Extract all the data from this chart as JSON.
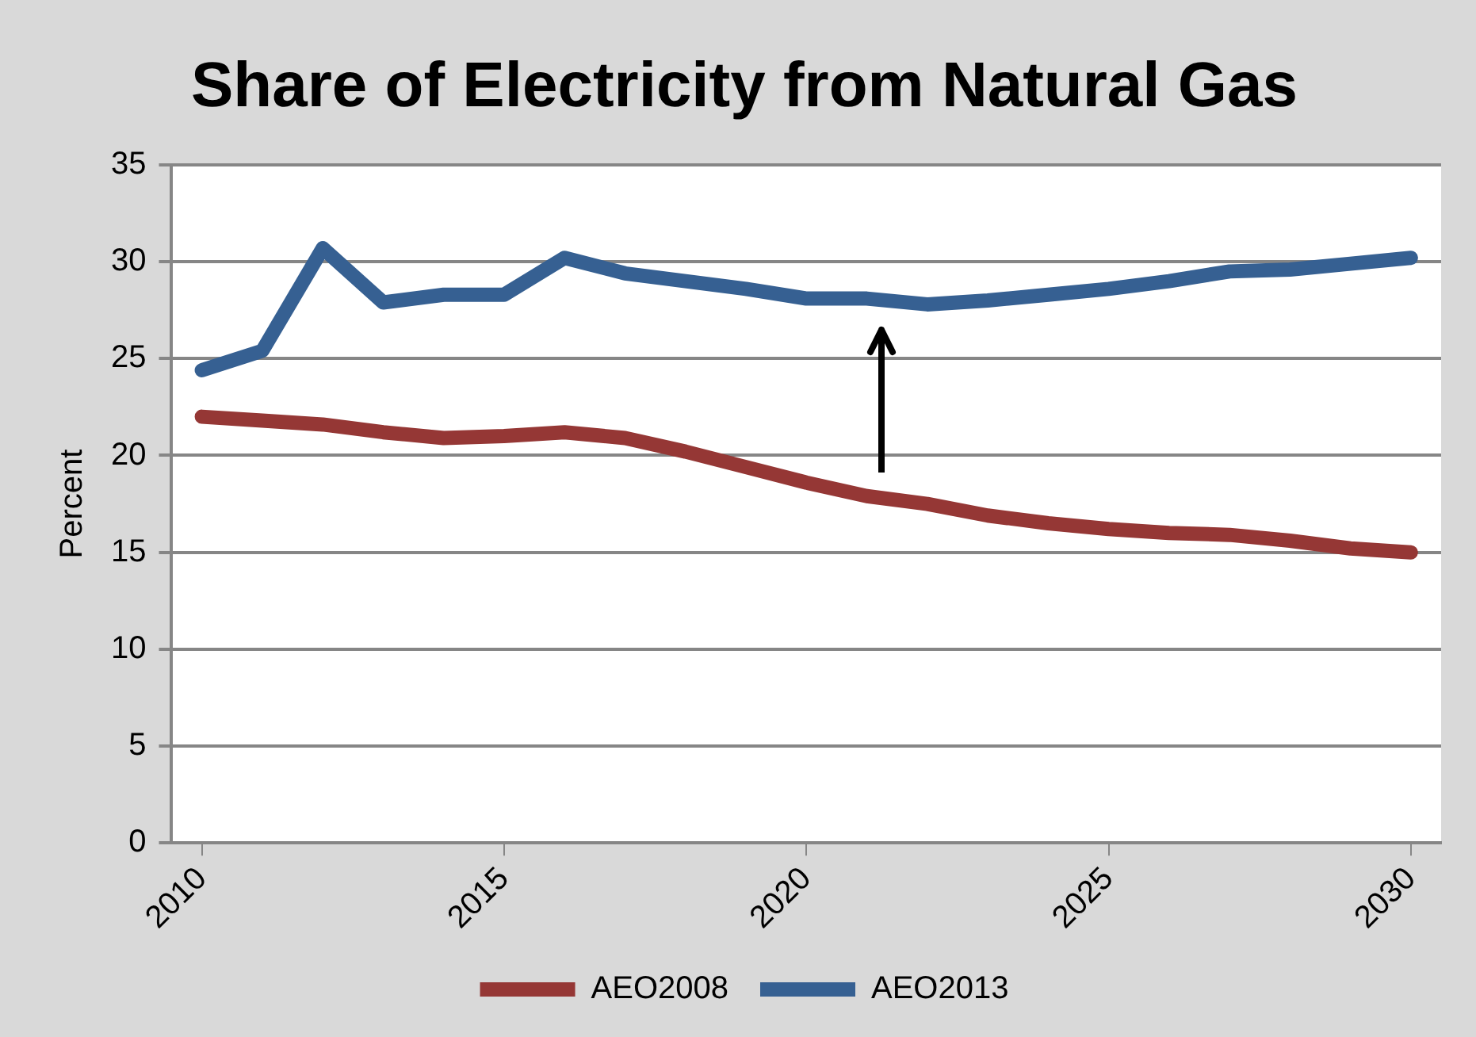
{
  "chart_data": {
    "type": "line",
    "title": "Share of Electricity from Natural Gas",
    "ylabel": "Percent",
    "x": [
      2010,
      2011,
      2012,
      2013,
      2014,
      2015,
      2016,
      2017,
      2018,
      2019,
      2020,
      2021,
      2022,
      2023,
      2024,
      2025,
      2026,
      2027,
      2028,
      2029,
      2030
    ],
    "series": [
      {
        "name": "AEO2008",
        "color": "#953735",
        "values": [
          22.0,
          21.8,
          21.6,
          21.2,
          20.9,
          21.0,
          21.2,
          20.9,
          20.2,
          19.4,
          18.6,
          17.9,
          17.5,
          16.9,
          16.5,
          16.2,
          16.0,
          15.9,
          15.6,
          15.2,
          15.0
        ]
      },
      {
        "name": "AEO2013",
        "color": "#366092",
        "values": [
          24.4,
          25.4,
          30.7,
          27.9,
          28.3,
          28.3,
          30.2,
          29.4,
          29.0,
          28.6,
          28.1,
          28.1,
          27.8,
          28.0,
          28.3,
          28.6,
          29.0,
          29.5,
          29.6,
          29.9,
          30.2
        ]
      }
    ],
    "xlim": [
      2009.5,
      2030.5
    ],
    "xticks": [
      2010,
      2015,
      2020,
      2025,
      2030
    ],
    "ylim": [
      0,
      35
    ],
    "yticks": [
      0,
      5,
      10,
      15,
      20,
      25,
      30,
      35
    ],
    "grid": "y",
    "legend": "bottom",
    "marker": "none",
    "line_style": "solid"
  }
}
